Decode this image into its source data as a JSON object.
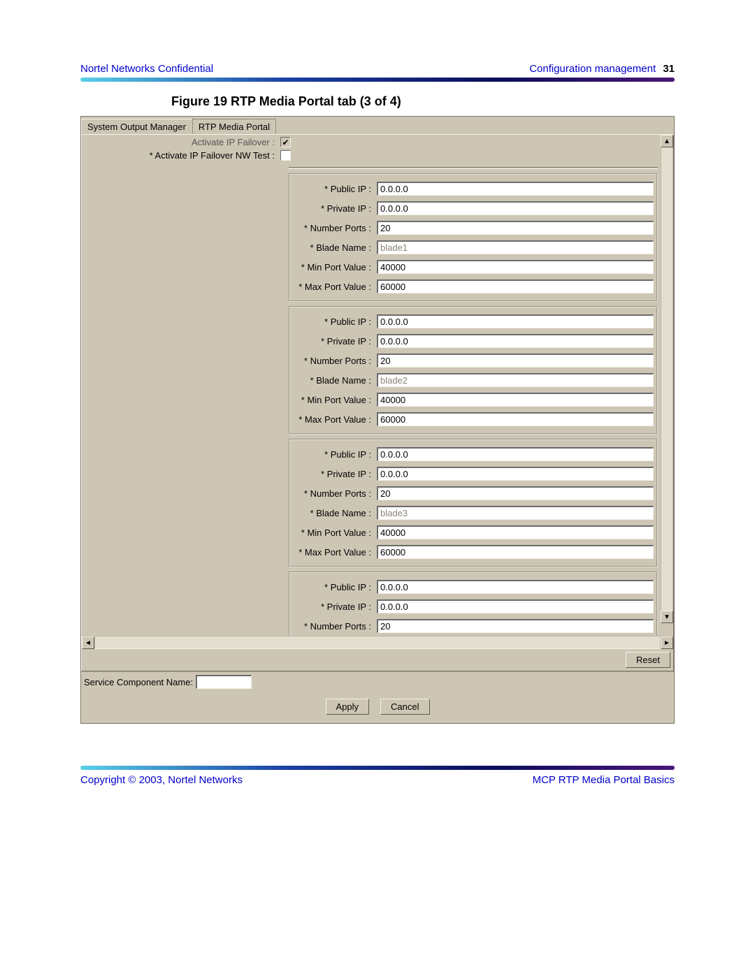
{
  "header": {
    "left": "Nortel Networks Confidential",
    "right_text": "Configuration management",
    "page_number": "31"
  },
  "figure_caption": "Figure 19  RTP Media Portal tab (3 of 4)",
  "tabs": {
    "inactive": "System Output Manager",
    "active": "RTP Media Portal"
  },
  "top": {
    "clipped_label": "Activate IP Failover :",
    "clipped_checked": true,
    "nwtest_label": "* Activate IP Failover NW Test :",
    "nwtest_checked": false
  },
  "field_labels": {
    "public_ip": "* Public IP :",
    "private_ip": "* Private IP :",
    "num_ports": "* Number Ports :",
    "blade_name": "* Blade Name :",
    "min_port": "* Min Port Value :",
    "max_port": "* Max Port Value :"
  },
  "blades": [
    {
      "public_ip": "0.0.0.0",
      "private_ip": "0.0.0.0",
      "num_ports": "20",
      "blade_name": "blade1",
      "min_port": "40000",
      "max_port": "60000"
    },
    {
      "public_ip": "0.0.0.0",
      "private_ip": "0.0.0.0",
      "num_ports": "20",
      "blade_name": "blade2",
      "min_port": "40000",
      "max_port": "60000"
    },
    {
      "public_ip": "0.0.0.0",
      "private_ip": "0.0.0.0",
      "num_ports": "20",
      "blade_name": "blade3",
      "min_port": "40000",
      "max_port": "60000"
    }
  ],
  "partial_blade": {
    "public_ip": "0.0.0.0",
    "private_ip": "0.0.0.0",
    "num_ports": "20"
  },
  "buttons": {
    "reset": "Reset",
    "apply": "Apply",
    "cancel": "Cancel"
  },
  "service_component_label": "Service Component Name:",
  "service_component_value": "",
  "footer": {
    "left": "Copyright © 2003, Nortel Networks",
    "right": "MCP RTP Media Portal Basics"
  },
  "colors": {
    "window_bg": "#cec6b5",
    "link": "#0000cc"
  }
}
